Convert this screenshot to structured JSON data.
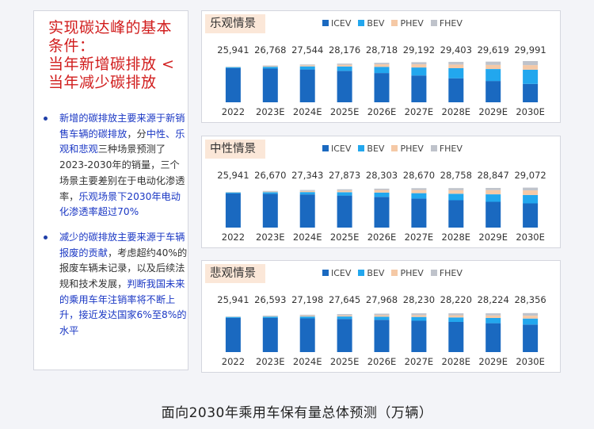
{
  "left": {
    "headline": [
      "实现碳达峰的基本",
      "条件：",
      "当年新增碳排放 <",
      "当年减少碳排放"
    ],
    "bullets": [
      {
        "segments": [
          {
            "text": "新增的碳排放主要来源于新销售车辆的碳排放",
            "blue": true
          },
          {
            "text": "，分",
            "blue": false
          },
          {
            "text": "中性、乐观和悲观",
            "blue": true
          },
          {
            "text": "三种场景预测了2023-2030年的销量，三个场景主要差别在于电动化渗透率，",
            "blue": false
          },
          {
            "text": "乐观场景下2030年电动化渗透率超过70%",
            "blue": true
          }
        ]
      },
      {
        "segments": [
          {
            "text": "减少的碳排放主要来源于车辆报废的贡献",
            "blue": true
          },
          {
            "text": "，考虑超约40%的报废车辆未记录，以及后续法规和技术发展，",
            "blue": false
          },
          {
            "text": "判断我国未来的乘用车年注销率将不断上升，接近发达国家6%至8%的水平",
            "blue": true
          }
        ]
      }
    ]
  },
  "caption": "面向2030年乘用车保有量总体预测（万辆）",
  "colors": {
    "ICEV": "#1a69c0",
    "BEV": "#22a7ee",
    "PHEV": "#f5c9a6",
    "FHEV": "#bfc3cb"
  },
  "chart_data": [
    {
      "type": "bar",
      "stacked": true,
      "title": "乐观情景",
      "legend": [
        "ICEV",
        "BEV",
        "PHEV",
        "FHEV"
      ],
      "categories": [
        "2022",
        "2023E",
        "2024E",
        "2025E",
        "2026E",
        "2027E",
        "2028E",
        "2029E",
        "2030E"
      ],
      "totals": [
        "25,941",
        "26,768",
        "27,544",
        "28,176",
        "28,718",
        "29,192",
        "29,403",
        "29,619",
        "29,991"
      ],
      "series": [
        {
          "name": "ICEV",
          "values": [
            24860,
            24500,
            23900,
            22800,
            21300,
            19500,
            17500,
            15500,
            13400
          ]
        },
        {
          "name": "BEV",
          "values": [
            720,
            1350,
            2250,
            3250,
            4500,
            5850,
            7300,
            8700,
            10300
          ]
        },
        {
          "name": "PHEV",
          "values": [
            110,
            420,
            820,
            1280,
            1820,
            2280,
            2660,
            3070,
            3350
          ]
        },
        {
          "name": "FHEV",
          "values": [
            251,
            498,
            574,
            846,
            1098,
            1562,
            1943,
            2349,
            2941
          ]
        }
      ]
    },
    {
      "type": "bar",
      "stacked": true,
      "title": "中性情景",
      "legend": [
        "ICEV",
        "BEV",
        "PHEV",
        "FHEV"
      ],
      "categories": [
        "2022",
        "2023E",
        "2024E",
        "2025E",
        "2026E",
        "2027E",
        "2028E",
        "2029E",
        "2030E"
      ],
      "totals": [
        "25,941",
        "26,670",
        "27,343",
        "27,873",
        "28,303",
        "28,670",
        "28,758",
        "28,847",
        "29,072"
      ],
      "series": [
        {
          "name": "ICEV",
          "values": [
            24860,
            24600,
            24100,
            23300,
            22300,
            21100,
            19900,
            18800,
            17600
          ]
        },
        {
          "name": "BEV",
          "values": [
            720,
            1150,
            1750,
            2450,
            3200,
            3950,
            4700,
            5400,
            6100
          ]
        },
        {
          "name": "PHEV",
          "values": [
            110,
            420,
            820,
            1280,
            1820,
            2280,
            2660,
            3070,
            3350
          ]
        },
        {
          "name": "FHEV",
          "values": [
            251,
            500,
            673,
            843,
            983,
            1340,
            1498,
            1577,
            2022
          ]
        }
      ]
    },
    {
      "type": "bar",
      "stacked": true,
      "title": "悲观情景",
      "legend": [
        "ICEV",
        "BEV",
        "PHEV",
        "FHEV"
      ],
      "categories": [
        "2022",
        "2023E",
        "2024E",
        "2025E",
        "2026E",
        "2027E",
        "2028E",
        "2029E",
        "2030E"
      ],
      "totals": [
        "25,941",
        "26,593",
        "27,198",
        "27,645",
        "27,968",
        "28,230",
        "28,220",
        "28,224",
        "28,356"
      ],
      "series": [
        {
          "name": "ICEV",
          "values": [
            24860,
            24800,
            24500,
            24100,
            23500,
            22800,
            21900,
            21000,
            20000
          ]
        },
        {
          "name": "BEV",
          "values": [
            720,
            1000,
            1400,
            1800,
            2250,
            2750,
            3300,
            3800,
            4400
          ]
        },
        {
          "name": "PHEV",
          "values": [
            110,
            300,
            550,
            820,
            1080,
            1350,
            1600,
            1850,
            2100
          ]
        },
        {
          "name": "FHEV",
          "values": [
            251,
            493,
            748,
            925,
            1138,
            1330,
            1420,
            1574,
            1856
          ]
        }
      ]
    }
  ]
}
